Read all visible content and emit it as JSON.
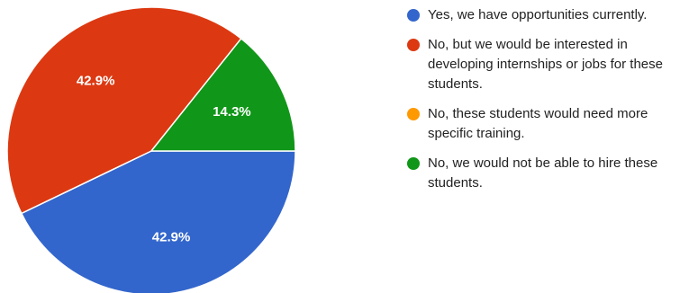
{
  "chart_data": {
    "type": "pie",
    "title": "",
    "legend_position": "right",
    "series": [
      {
        "name": "Yes, we have opportunities currently.",
        "value": 42.9,
        "label": "42.9%",
        "color": "#3366cc"
      },
      {
        "name": "No, but we would be interested in developing internships or jobs for these students.",
        "value": 42.9,
        "label": "42.9%",
        "color": "#dc3912"
      },
      {
        "name": "No, these students would need more specific training.",
        "value": 0,
        "label": "",
        "color": "#ff9900"
      },
      {
        "name": "No, we would not be able to hire these students.",
        "value": 14.3,
        "label": "14.3%",
        "color": "#109618"
      }
    ]
  }
}
